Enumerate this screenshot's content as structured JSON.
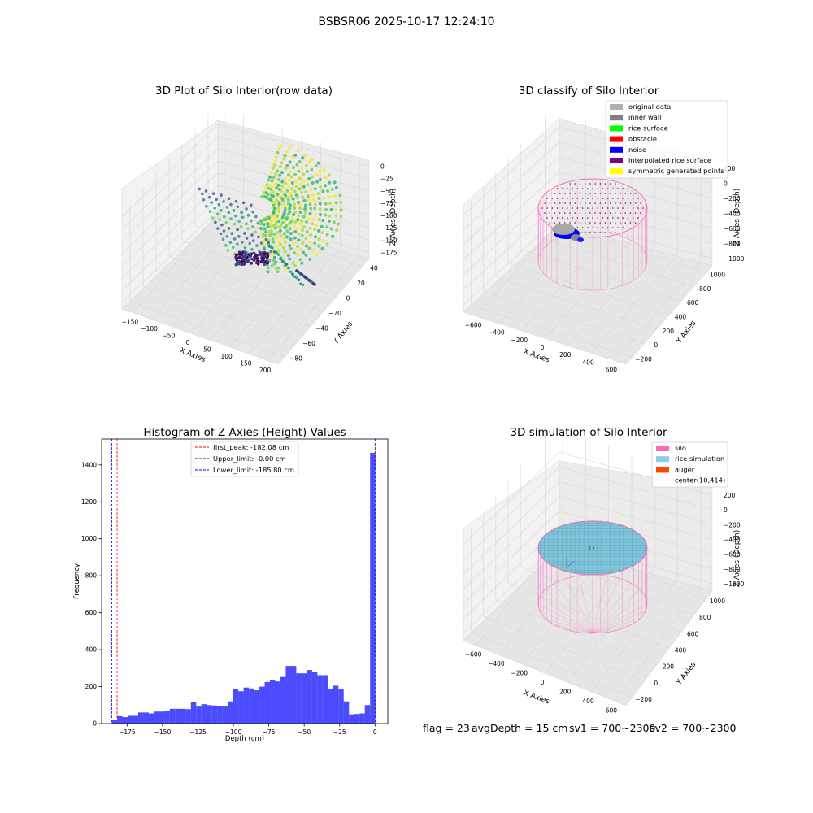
{
  "suptitle": "BSBSR06 2025-10-17 12:24:10",
  "footer": {
    "flag": "flag = 23",
    "avg_depth": "avgDepth = 15 cm",
    "sv1": "sv1 = 700~2300",
    "sv2": "sv2 = 700~2300"
  },
  "panel1": {
    "title": "3D Plot of Silo Interior(row data)",
    "xlabel": "X Axies",
    "ylabel": "Y Axies",
    "zlabel": "Z Axies (Depth)",
    "x_ticks": [
      "−150",
      "−100",
      "−50",
      "0",
      "50",
      "100",
      "150",
      "200"
    ],
    "y_ticks": [
      "−80",
      "−60",
      "−40",
      "−20",
      "0",
      "20",
      "40"
    ],
    "z_ticks": [
      "0",
      "−25",
      "−50",
      "−75",
      "−100",
      "−125",
      "−150",
      "−175"
    ]
  },
  "panel2": {
    "title": "3D classify of Silo Interior",
    "xlabel": "X Axies",
    "ylabel": "Y Axies",
    "zlabel": "Z Axies (Depth)",
    "x_ticks": [
      "−600",
      "−400",
      "−200",
      "0",
      "200",
      "400",
      "600"
    ],
    "y_ticks": [
      "−200",
      "0",
      "200",
      "400",
      "600",
      "800",
      "1000"
    ],
    "z_ticks": [
      "200",
      "0",
      "−200",
      "−400",
      "−600",
      "−800",
      "−1000"
    ],
    "legend": [
      {
        "label": "original data",
        "color": "#b0b0b0"
      },
      {
        "label": "inner wall",
        "color": "#808080"
      },
      {
        "label": "rice surface",
        "color": "#00ff00"
      },
      {
        "label": "obstacle",
        "color": "#ff0000"
      },
      {
        "label": "noise",
        "color": "#0000ff"
      },
      {
        "label": "interpolated rice surface",
        "color": "#800080"
      },
      {
        "label": "symmetric generated points",
        "color": "#ffff00"
      }
    ]
  },
  "panel3": {
    "title": "3D simulation of Silo Interior",
    "xlabel": "X Axies",
    "ylabel": "Y Axies",
    "zlabel": "Z Axies (Depth)",
    "x_ticks": [
      "−600",
      "−400",
      "−200",
      "0",
      "200",
      "400",
      "600"
    ],
    "y_ticks": [
      "−200",
      "0",
      "200",
      "400",
      "600",
      "800",
      "1000"
    ],
    "z_ticks": [
      "200",
      "0",
      "−200",
      "−400",
      "−600",
      "−800",
      "−1000"
    ],
    "legend": [
      {
        "label": "silo",
        "color": "#ff69b4"
      },
      {
        "label": "rice simulation",
        "color": "#87ceeb"
      },
      {
        "label": "auger",
        "color": "#ff4500"
      },
      {
        "label": "center(10,414)",
        "color": ""
      }
    ]
  },
  "chart_data": [
    {
      "type": "scatter",
      "title": "3D Plot of Silo Interior(row data)",
      "xlabel": "X Axies",
      "ylabel": "Y Axies",
      "zlabel": "Z Axies (Depth)",
      "xlim": [
        -175,
        210
      ],
      "ylim": [
        -85,
        55
      ],
      "zlim": [
        -185,
        5
      ],
      "colormap": "viridis",
      "note_values_estimated": true
    },
    {
      "type": "scatter",
      "title": "3D classify of Silo Interior",
      "xlabel": "X Axies",
      "ylabel": "Y Axies",
      "zlabel": "Z Axies (Depth)",
      "xlim": [
        -700,
        700
      ],
      "ylim": [
        -300,
        1100
      ],
      "zlim": [
        -1100,
        300
      ],
      "series": [
        {
          "name": "original data",
          "color": "#b0b0b0"
        },
        {
          "name": "inner wall",
          "color": "#808080"
        },
        {
          "name": "rice surface",
          "color": "#00ff00"
        },
        {
          "name": "obstacle",
          "color": "#ff0000"
        },
        {
          "name": "noise",
          "color": "#0000ff"
        },
        {
          "name": "interpolated rice surface",
          "color": "#800080"
        },
        {
          "name": "symmetric generated points",
          "color": "#ffff00"
        }
      ],
      "legend_position": "top-right"
    },
    {
      "type": "bar",
      "title": "Histogram of Z-Axies (Height) Values",
      "xlabel": "Depth (cm)",
      "ylabel": "Frequency",
      "xlim": [
        -193,
        9
      ],
      "ylim": [
        0,
        1540
      ],
      "x_ticks": [
        -175,
        -150,
        -125,
        -100,
        -75,
        -50,
        -25,
        0
      ],
      "y_ticks": [
        0,
        200,
        400,
        600,
        800,
        1000,
        1200,
        1400
      ],
      "bar_color": "#0000ff",
      "bar_alpha": 0.7,
      "bins": [
        {
          "x0": -185.8,
          "x1": -182.08,
          "count": 20
        },
        {
          "x0": -182.08,
          "x1": -178.36,
          "count": 40
        },
        {
          "x0": -178.36,
          "x1": -174.64,
          "count": 35
        },
        {
          "x0": -174.64,
          "x1": -170.92,
          "count": 42
        },
        {
          "x0": -170.92,
          "x1": -167.2,
          "count": 42
        },
        {
          "x0": -167.2,
          "x1": -163.48,
          "count": 60
        },
        {
          "x0": -163.48,
          "x1": -159.76,
          "count": 60
        },
        {
          "x0": -159.76,
          "x1": -156.04,
          "count": 55
        },
        {
          "x0": -156.04,
          "x1": -152.32,
          "count": 65
        },
        {
          "x0": -152.32,
          "x1": -148.6,
          "count": 65
        },
        {
          "x0": -148.6,
          "x1": -144.88,
          "count": 70
        },
        {
          "x0": -144.88,
          "x1": -141.16,
          "count": 80
        },
        {
          "x0": -141.16,
          "x1": -137.44,
          "count": 80
        },
        {
          "x0": -137.44,
          "x1": -133.72,
          "count": 80
        },
        {
          "x0": -133.72,
          "x1": -130.0,
          "count": 78
        },
        {
          "x0": -130.0,
          "x1": -126.28,
          "count": 118
        },
        {
          "x0": -126.28,
          "x1": -122.56,
          "count": 92
        },
        {
          "x0": -122.56,
          "x1": -118.84,
          "count": 105
        },
        {
          "x0": -118.84,
          "x1": -115.12,
          "count": 100
        },
        {
          "x0": -115.12,
          "x1": -111.4,
          "count": 98
        },
        {
          "x0": -111.4,
          "x1": -107.68,
          "count": 95
        },
        {
          "x0": -107.68,
          "x1": -103.96,
          "count": 92
        },
        {
          "x0": -103.96,
          "x1": -100.24,
          "count": 120
        },
        {
          "x0": -100.24,
          "x1": -96.52,
          "count": 185
        },
        {
          "x0": -96.52,
          "x1": -92.8,
          "count": 175
        },
        {
          "x0": -92.8,
          "x1": -89.08,
          "count": 195
        },
        {
          "x0": -89.08,
          "x1": -85.36,
          "count": 190
        },
        {
          "x0": -85.36,
          "x1": -81.64,
          "count": 180
        },
        {
          "x0": -81.64,
          "x1": -77.92,
          "count": 200
        },
        {
          "x0": -77.92,
          "x1": -74.2,
          "count": 225
        },
        {
          "x0": -74.2,
          "x1": -70.48,
          "count": 235
        },
        {
          "x0": -70.48,
          "x1": -66.76,
          "count": 228
        },
        {
          "x0": -66.76,
          "x1": -63.04,
          "count": 252
        },
        {
          "x0": -63.04,
          "x1": -59.32,
          "count": 312
        },
        {
          "x0": -59.32,
          "x1": -55.6,
          "count": 312
        },
        {
          "x0": -55.6,
          "x1": -51.88,
          "count": 272
        },
        {
          "x0": -51.88,
          "x1": -48.16,
          "count": 272
        },
        {
          "x0": -48.16,
          "x1": -44.44,
          "count": 290
        },
        {
          "x0": -44.44,
          "x1": -40.72,
          "count": 280
        },
        {
          "x0": -40.72,
          "x1": -37.0,
          "count": 262
        },
        {
          "x0": -37.0,
          "x1": -33.28,
          "count": 262
        },
        {
          "x0": -33.28,
          "x1": -29.56,
          "count": 185
        },
        {
          "x0": -29.56,
          "x1": -25.84,
          "count": 205
        },
        {
          "x0": -25.84,
          "x1": -22.12,
          "count": 185
        },
        {
          "x0": -22.12,
          "x1": -18.4,
          "count": 120
        },
        {
          "x0": -18.4,
          "x1": -14.68,
          "count": 50
        },
        {
          "x0": -14.68,
          "x1": -10.96,
          "count": 52
        },
        {
          "x0": -10.96,
          "x1": -7.24,
          "count": 55
        },
        {
          "x0": -7.24,
          "x1": -3.52,
          "count": 100
        },
        {
          "x0": -3.52,
          "x1": 0.2,
          "count": 1465
        }
      ],
      "vlines": [
        {
          "label": "first_peak: -182.08 cm",
          "value": -182.08,
          "color": "#ff0000",
          "style": "dashed"
        },
        {
          "label": "Upper_limit: -0.00 cm",
          "value": -0.0,
          "color": "#00008b",
          "style": "dashed"
        },
        {
          "label": "Lower_limit: -185.80 cm",
          "value": -185.8,
          "color": "#0000ff",
          "style": "dashed"
        }
      ],
      "legend_position": "top-center"
    },
    {
      "type": "scatter",
      "title": "3D simulation of Silo Interior",
      "xlabel": "X Axies",
      "ylabel": "Y Axies",
      "zlabel": "Z Axies (Depth)",
      "xlim": [
        -700,
        700
      ],
      "ylim": [
        -300,
        1100
      ],
      "zlim": [
        -1100,
        300
      ],
      "series": [
        {
          "name": "silo",
          "color": "#ff69b4"
        },
        {
          "name": "rice simulation",
          "color": "#87ceeb"
        },
        {
          "name": "auger",
          "color": "#ff4500"
        },
        {
          "name": "center(10,414)",
          "color": ""
        }
      ],
      "legend_position": "top-right"
    }
  ]
}
